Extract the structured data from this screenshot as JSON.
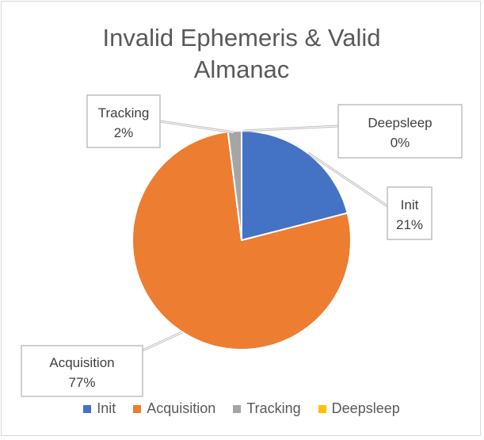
{
  "chart_data": {
    "type": "pie",
    "title_lines": [
      "Invalid Ephemeris & Valid",
      "Almanac"
    ],
    "categories": [
      "Init",
      "Acquisition",
      "Tracking",
      "Deepsleep"
    ],
    "values": [
      21,
      77,
      2,
      0
    ],
    "value_labels": [
      "21%",
      "77%",
      "2%",
      "0%"
    ],
    "colors": [
      "#4472C4",
      "#ED7D31",
      "#A5A5A5",
      "#FFC000"
    ],
    "start_angle_deg": 0,
    "direction": "clockwise",
    "legend_position": "bottom",
    "data_labels": "callouts-with-leader-lines"
  }
}
